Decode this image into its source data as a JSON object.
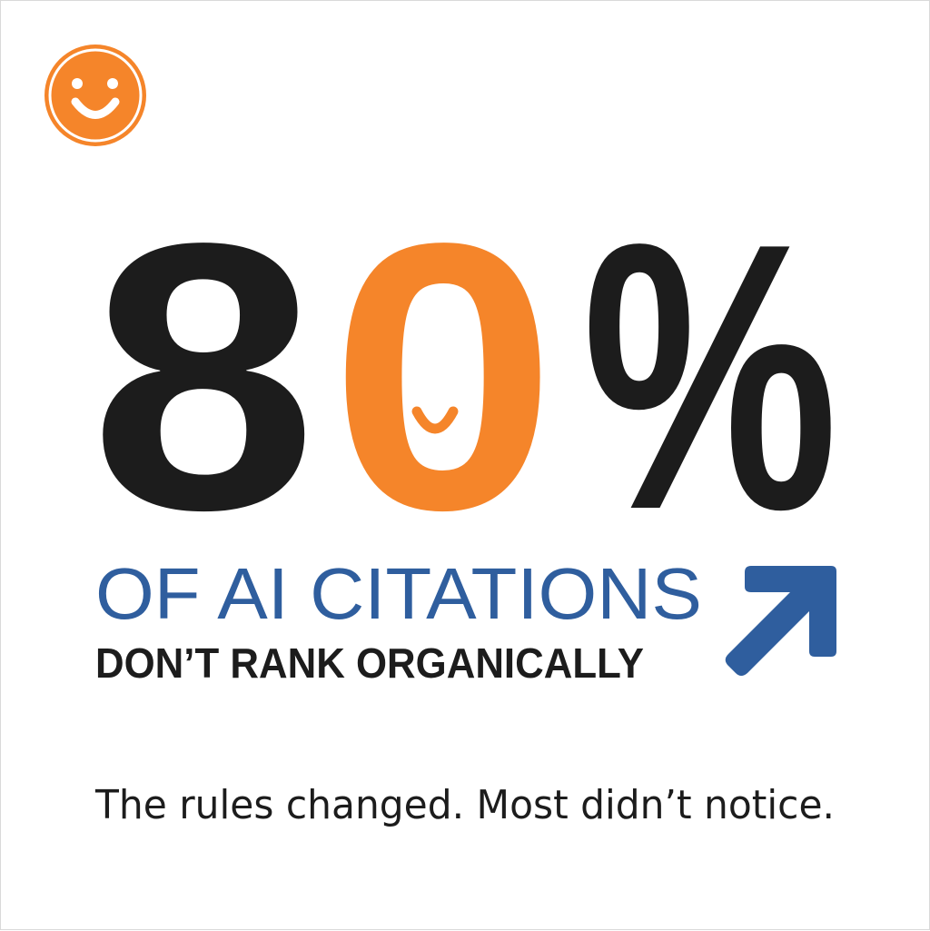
{
  "logo": {
    "icon": "smiley-face-icon"
  },
  "headline": {
    "digit1": "8",
    "digit2": "0",
    "percent": "%"
  },
  "subhead": {
    "line1": "OF AI CITATIONS",
    "line2": "DON’T RANK ORGANICALLY"
  },
  "arrow": {
    "icon": "arrow-up-right-icon"
  },
  "tagline": "The rules changed. Most didn’t notice.",
  "colors": {
    "orange": "#F5852A",
    "blue": "#2F5E9E",
    "dark": "#1C1C1C"
  }
}
